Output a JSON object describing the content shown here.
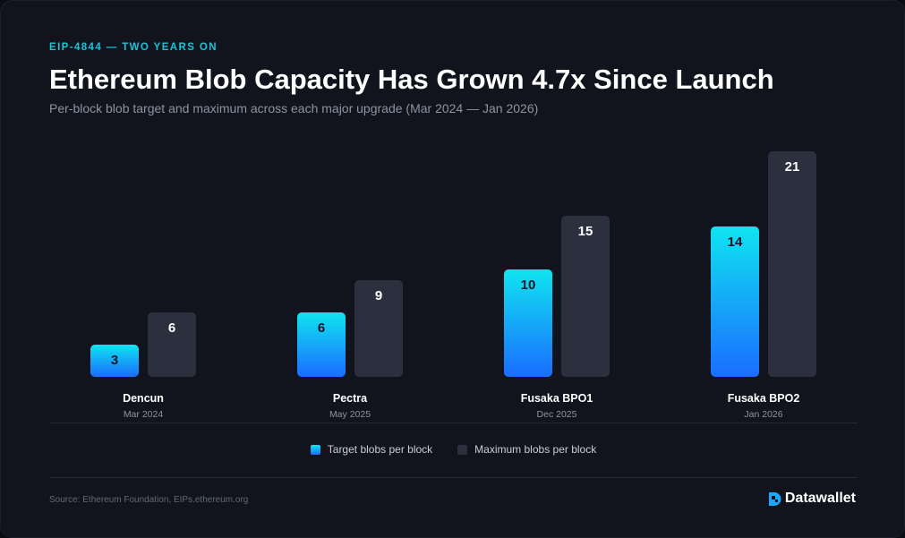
{
  "header": {
    "eyebrow": "EIP-4844 — TWO YEARS ON",
    "title": "Ethereum Blob Capacity Has Grown 4.7x Since Launch",
    "subtitle": "Per-block blob target and maximum across each major upgrade (Mar 2024 — Jan 2026)"
  },
  "legend": {
    "target_label": "Target blobs per block",
    "max_label": "Maximum blobs per block"
  },
  "footer": {
    "source": "Source: Ethereum Foundation, EIPs.ethereum.org",
    "brand": "Datawallet"
  },
  "colors": {
    "target_top": "#10e4f0",
    "target_bottom": "#1a6dff",
    "max": "#2c303e",
    "accent": "#19c3d8"
  },
  "chart_data": {
    "type": "bar",
    "title": "Ethereum Blob Capacity Has Grown 4.7x Since Launch",
    "categories": [
      "Dencun",
      "Pectra",
      "Fusaka BPO1",
      "Fusaka BPO2"
    ],
    "category_dates": [
      "Mar 2024",
      "May 2025",
      "Dec 2025",
      "Jan 2026"
    ],
    "series": [
      {
        "name": "Target blobs per block",
        "values": [
          3,
          6,
          10,
          14
        ]
      },
      {
        "name": "Maximum blobs per block",
        "values": [
          6,
          9,
          15,
          21
        ]
      }
    ],
    "ylim": [
      0,
      21
    ],
    "grid": false,
    "legend": "bottom-center"
  }
}
